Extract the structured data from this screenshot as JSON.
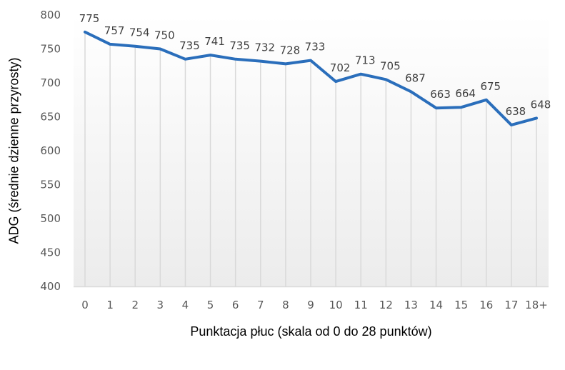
{
  "chart_data": {
    "type": "line",
    "title": "",
    "xlabel": "Punktacja płuc (skala od 0 do 28 punktów)",
    "ylabel": "ADG (średnie dzienne przyrosty)",
    "categories": [
      "0",
      "1",
      "2",
      "3",
      "4",
      "5",
      "6",
      "7",
      "8",
      "9",
      "10",
      "11",
      "12",
      "13",
      "14",
      "15",
      "16",
      "17",
      "18+"
    ],
    "series": [
      {
        "name": "ADG",
        "values": [
          775,
          757,
          754,
          750,
          735,
          741,
          735,
          732,
          728,
          733,
          702,
          713,
          705,
          687,
          663,
          664,
          675,
          638,
          648
        ],
        "color": "#2a6ebb",
        "data_labels": true
      }
    ],
    "ylim": [
      400,
      800
    ],
    "yticks": [
      400,
      450,
      500,
      550,
      600,
      650,
      700,
      750,
      800
    ],
    "grid": "vertical drop lines per category",
    "legend": "none",
    "plot_background": "gradient white to light gray"
  },
  "colors": {
    "line": "#2a6ebb",
    "tick_text": "#595959",
    "data_label_text": "#404040",
    "drop_line": "#d9d9d9",
    "plot_bg_top": "#ffffff",
    "plot_bg_bottom": "#ececec"
  }
}
